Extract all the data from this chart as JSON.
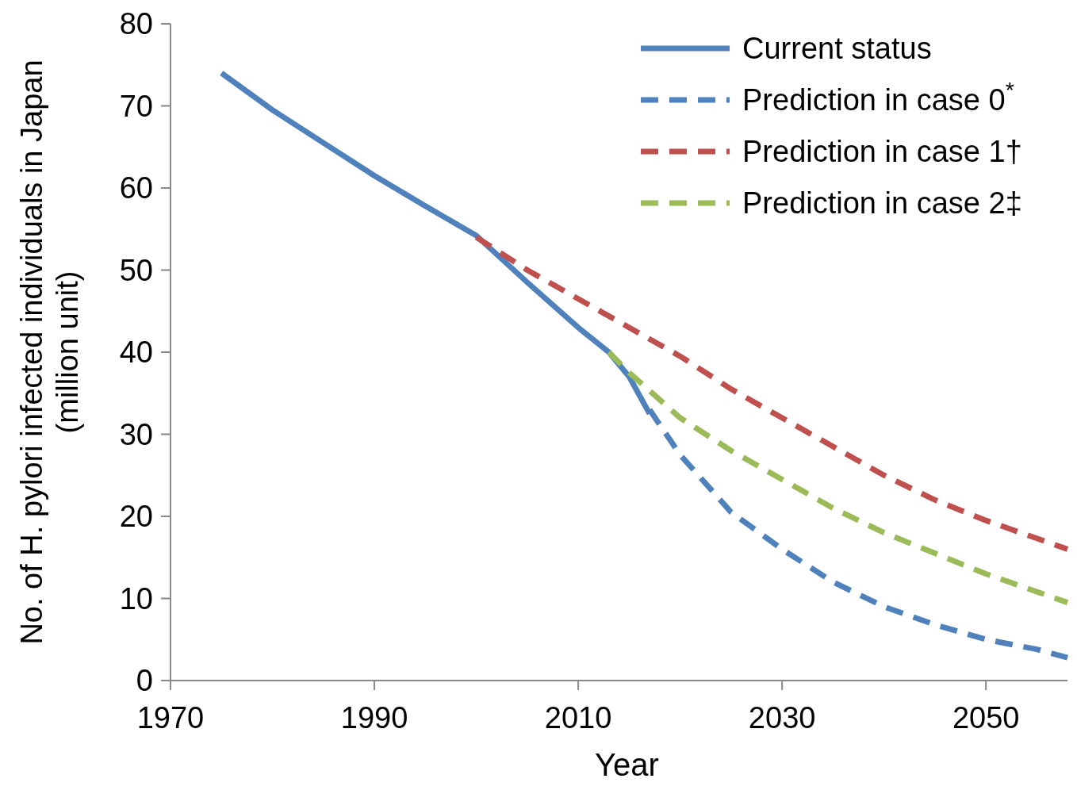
{
  "chart_data": {
    "type": "line",
    "xlabel": "Year",
    "ylabel": "No. of H. pylori infected individuals in Japan\n(million unit)",
    "xlim": [
      1970,
      2058
    ],
    "xticks": [
      1970,
      1990,
      2010,
      2030,
      2050
    ],
    "ylim": [
      0,
      80
    ],
    "yticks": [
      0,
      10,
      20,
      30,
      40,
      50,
      60,
      70,
      80
    ],
    "grid": false,
    "legend": "top right",
    "marker": "none",
    "series": [
      {
        "name": "Current status",
        "color": "#4f81bd",
        "line_style": "solid",
        "x": [
          1975,
          1980,
          1985,
          1990,
          1995,
          2000,
          2005,
          2010,
          2013,
          2015,
          2017
        ],
        "values": [
          74,
          69.5,
          65.5,
          61.5,
          57.8,
          54.2,
          48.5,
          43,
          40,
          37,
          32.5
        ]
      },
      {
        "name": "Prediction in case 0$^{*}$",
        "color": "#4f81bd",
        "line_style": "dashed",
        "x": [
          2017,
          2020,
          2025,
          2030,
          2035,
          2040,
          2045,
          2050,
          2055,
          2058
        ],
        "values": [
          33,
          27.5,
          20.5,
          16,
          12,
          9,
          6.8,
          5,
          3.8,
          2.8
        ]
      },
      {
        "name": "Prediction in case 1†",
        "color": "#c0504d",
        "line_style": "dashed",
        "x": [
          2000,
          2005,
          2010,
          2015,
          2020,
          2025,
          2030,
          2035,
          2040,
          2045,
          2050,
          2058
        ],
        "values": [
          54,
          50,
          46.5,
          43,
          39.5,
          35.5,
          32,
          28.5,
          25,
          22,
          19.5,
          16
        ]
      },
      {
        "name": "Prediction in case 2‡",
        "color": "#9bbb59",
        "line_style": "dashed",
        "x": [
          2013,
          2015,
          2020,
          2025,
          2030,
          2035,
          2040,
          2045,
          2050,
          2058
        ],
        "values": [
          40,
          37.5,
          32,
          28,
          24.5,
          21,
          18,
          15.5,
          13,
          9.5
        ]
      }
    ]
  }
}
